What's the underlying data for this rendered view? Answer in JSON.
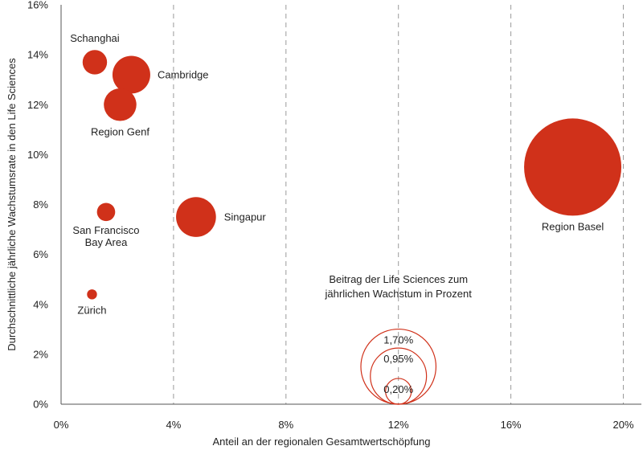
{
  "chart_data": {
    "type": "scatter",
    "subtype": "bubble",
    "xlabel": "Anteil an der regionalen Gesamtwertschöpfung",
    "ylabel": "Durchschnittliche jährliche Wachstumsrate in den Life Sciences",
    "xlim": [
      0,
      20.7
    ],
    "ylim": [
      0,
      16
    ],
    "x_ticks": [
      "0%",
      "4%",
      "8%",
      "12%",
      "16%",
      "20%"
    ],
    "x_tick_values": [
      0,
      4,
      8,
      12,
      16,
      20
    ],
    "y_ticks": [
      "0%",
      "2%",
      "4%",
      "6%",
      "8%",
      "10%",
      "12%",
      "14%",
      "16%"
    ],
    "y_tick_values": [
      0,
      2,
      4,
      6,
      8,
      10,
      12,
      14,
      16
    ],
    "grid": "vertical dashed at x ticks",
    "bubble_color": "#d0311a",
    "points": [
      {
        "name": "Schanghai",
        "x": 1.2,
        "y": 13.7,
        "size": 0.18
      },
      {
        "name": "Cambridge",
        "x": 2.5,
        "y": 13.2,
        "size": 0.43
      },
      {
        "name": "Region Genf",
        "x": 2.1,
        "y": 12.0,
        "size": 0.32
      },
      {
        "name": "San Francisco Bay Area",
        "x": 1.6,
        "y": 7.7,
        "size": 0.1
      },
      {
        "name": "Singapur",
        "x": 4.8,
        "y": 7.5,
        "size": 0.48
      },
      {
        "name": "Zürich",
        "x": 1.1,
        "y": 4.4,
        "size": 0.03
      },
      {
        "name": "Region Basel",
        "x": 18.2,
        "y": 9.5,
        "size": 2.85
      }
    ],
    "size_legend": {
      "title_line1": "Beitrag der Life Sciences zum",
      "title_line2": "jährlichen Wachstum in Prozent",
      "entries": [
        {
          "label": "1,70%",
          "size": 1.7
        },
        {
          "label": "0,95%",
          "size": 0.95
        },
        {
          "label": "0,20%",
          "size": 0.2
        }
      ]
    }
  }
}
